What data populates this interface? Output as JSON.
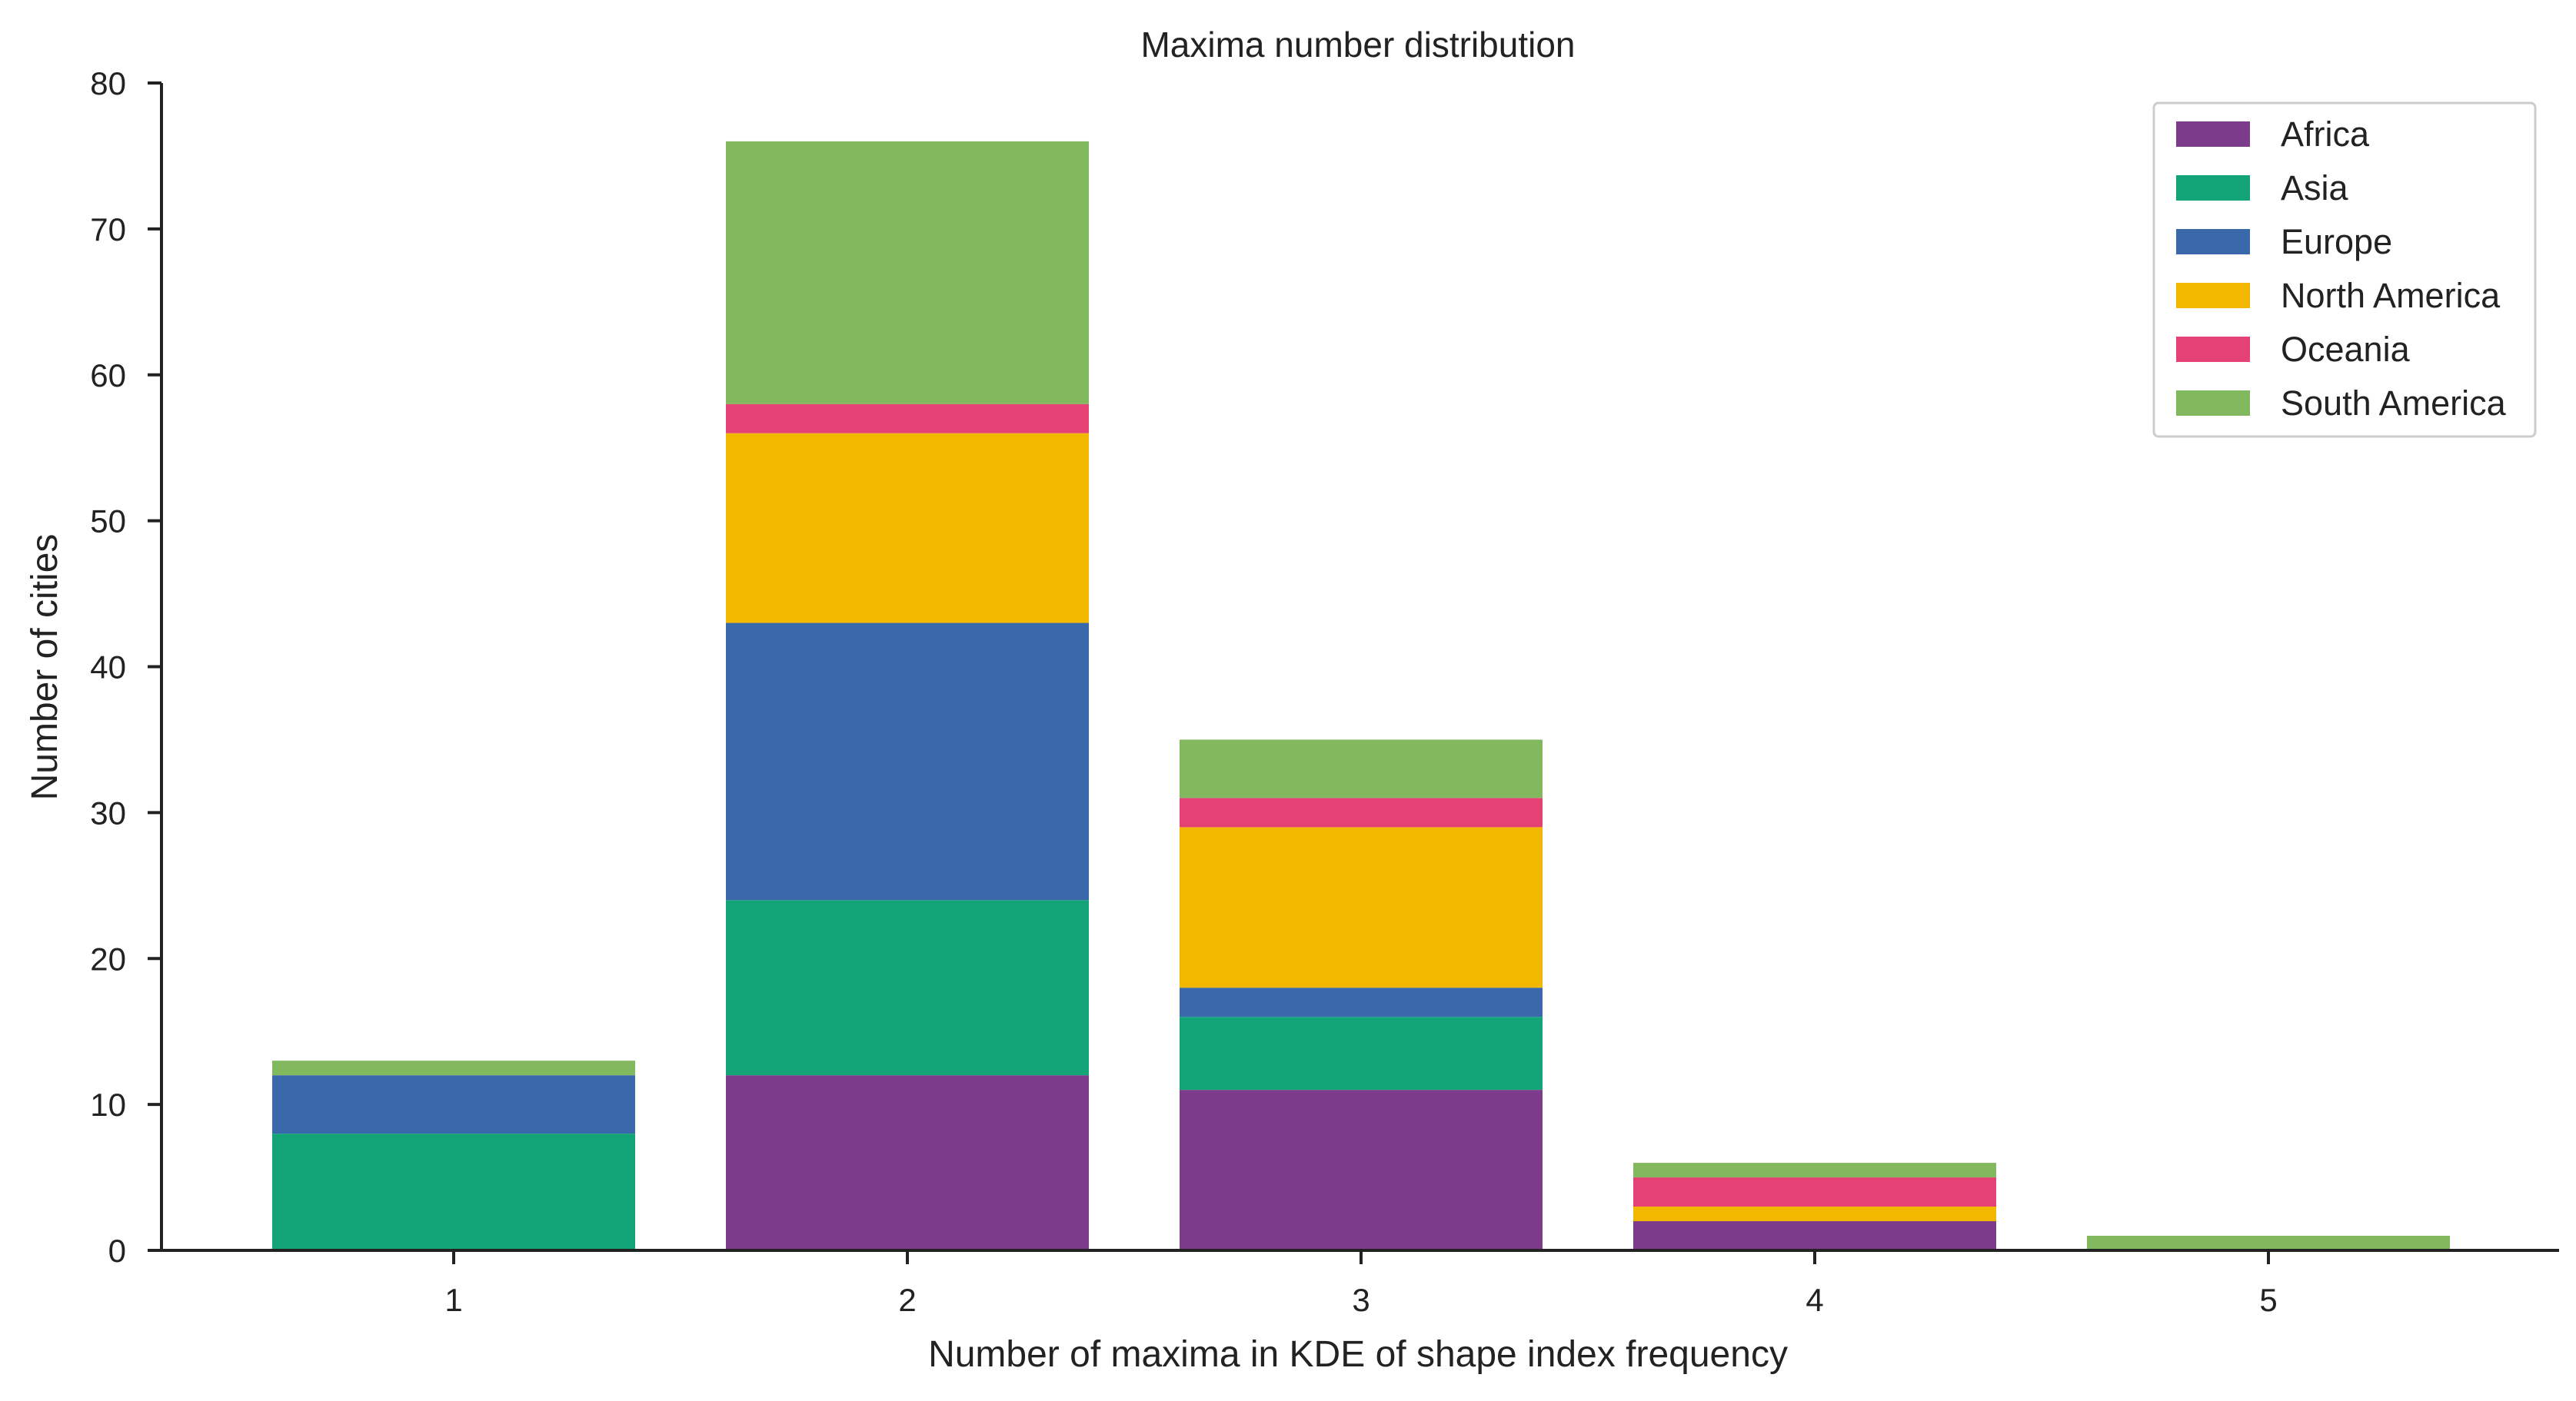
{
  "chart_data": {
    "type": "bar",
    "stacked": true,
    "title": "Maxima number distribution",
    "xlabel": "Number of maxima in KDE of shape index frequency",
    "ylabel": "Number of cities",
    "categories": [
      "1",
      "2",
      "3",
      "4",
      "5"
    ],
    "ylim": [
      0,
      80
    ],
    "yticks": [
      "0",
      "10",
      "20",
      "30",
      "40",
      "50",
      "60",
      "70",
      "80"
    ],
    "grid": false,
    "legend_position": "top-right",
    "series": [
      {
        "name": "Africa",
        "color": "#7d3c8b",
        "values": [
          0,
          12,
          11,
          2,
          0
        ]
      },
      {
        "name": "Asia",
        "color": "#13a577",
        "values": [
          8,
          12,
          5,
          0,
          0
        ]
      },
      {
        "name": "Europe",
        "color": "#3a69ab",
        "values": [
          4,
          19,
          2,
          0,
          0
        ]
      },
      {
        "name": "North America",
        "color": "#f2b800",
        "values": [
          0,
          13,
          11,
          1,
          0
        ]
      },
      {
        "name": "Oceania",
        "color": "#e64174",
        "values": [
          0,
          2,
          2,
          2,
          0
        ]
      },
      {
        "name": "South America",
        "color": "#83b95e",
        "values": [
          1,
          18,
          4,
          1,
          1
        ]
      }
    ]
  }
}
